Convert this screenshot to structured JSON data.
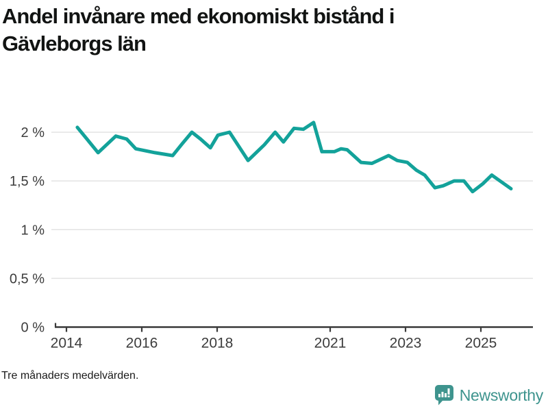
{
  "title": "Andel invånare med ekonomiskt bistånd i Gävleborgs län",
  "title_lines": [
    "Andel invånare med ekonomiskt bistånd i",
    "Gävleborgs län"
  ],
  "footnote": "Tre månaders medelvärden.",
  "brand": {
    "name": "Newsworthy",
    "color": "#3e948e",
    "icon": "bar-chart-speech-bubble-icon"
  },
  "colors": {
    "line": "#13a29a",
    "gridline": "#e3e3e3",
    "axis": "#3a3a3a",
    "tick_label": "#3c3c3c",
    "title": "#121413"
  },
  "chart_data": {
    "type": "line",
    "title": "Andel invånare med ekonomiskt bistånd i Gävleborgs län",
    "subtitle": "",
    "series": [
      {
        "name": "Andel invånare med ekonomiskt bistånd, Gävleborgs län",
        "unit": "%",
        "x": [
          2014.29,
          2014.84,
          2015.31,
          2015.6,
          2015.84,
          2016.35,
          2016.82,
          2017.07,
          2017.33,
          2017.56,
          2017.82,
          2018.02,
          2018.33,
          2018.82,
          2019.25,
          2019.54,
          2019.76,
          2020.04,
          2020.29,
          2020.56,
          2020.78,
          2021.11,
          2021.29,
          2021.45,
          2021.82,
          2022.11,
          2022.55,
          2022.78,
          2023.05,
          2023.29,
          2023.51,
          2023.78,
          2024.0,
          2024.29,
          2024.55,
          2024.78,
          2025.05,
          2025.29,
          2025.8
        ],
        "values": [
          2.05,
          1.79,
          1.96,
          1.93,
          1.83,
          1.79,
          1.76,
          1.88,
          2.0,
          1.93,
          1.84,
          1.97,
          2.0,
          1.71,
          1.87,
          2.0,
          1.9,
          2.04,
          2.03,
          2.1,
          1.8,
          1.8,
          1.83,
          1.82,
          1.69,
          1.68,
          1.76,
          1.71,
          1.69,
          1.61,
          1.56,
          1.43,
          1.45,
          1.5,
          1.5,
          1.39,
          1.47,
          1.56,
          1.42
        ]
      }
    ],
    "xlabel": "",
    "ylabel": "",
    "x_ticks": [
      {
        "value": 2014,
        "label": "2014"
      },
      {
        "value": 2016,
        "label": "2016"
      },
      {
        "value": 2018,
        "label": "2018"
      },
      {
        "value": 2021,
        "label": "2021"
      },
      {
        "value": 2023,
        "label": "2023"
      },
      {
        "value": 2025,
        "label": "2025"
      }
    ],
    "y_ticks": [
      {
        "value": 0,
        "label": "0 %"
      },
      {
        "value": 0.5,
        "label": "0,5 %"
      },
      {
        "value": 1,
        "label": "1 %"
      },
      {
        "value": 1.5,
        "label": "1,5 %"
      },
      {
        "value": 2,
        "label": "2 %"
      }
    ],
    "ylim": [
      0,
      2.2
    ],
    "xlim": [
      2013.7,
      2026.3
    ],
    "grid": true,
    "legend_position": "none",
    "line_color": "#13a29a",
    "note": "Tre månaders medelvärden."
  }
}
